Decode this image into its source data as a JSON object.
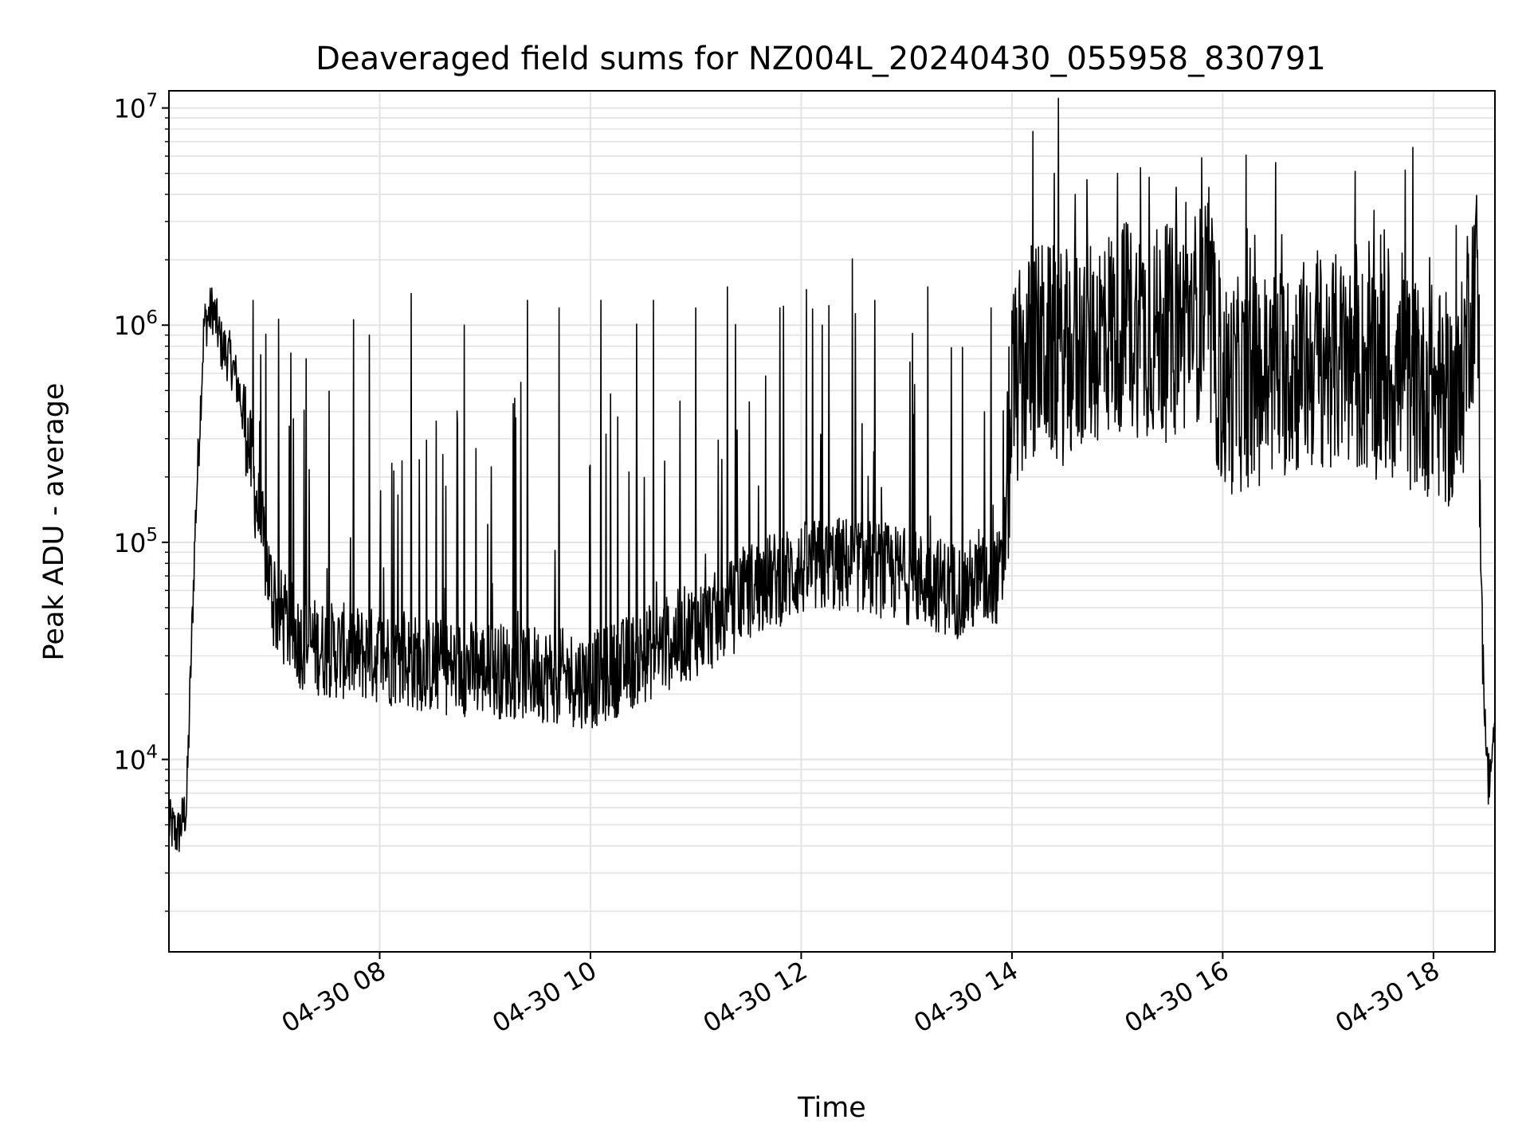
{
  "chart_data": {
    "type": "line",
    "title": "Deaveraged field sums for NZ004L_20240430_055958_830791",
    "xlabel": "Time",
    "ylabel": "Peak ADU - average",
    "yscale": "log",
    "ylim": [
      1300,
      12000000
    ],
    "xlim": [
      "2024-04-30 06:00",
      "2024-04-30 18:35"
    ],
    "x_ticks": [
      "04-30 08",
      "04-30 10",
      "04-30 12",
      "04-30 14",
      "04-30 16",
      "04-30 18"
    ],
    "y_ticks": [
      {
        "base": "10",
        "exp": "4"
      },
      {
        "base": "10",
        "exp": "5"
      },
      {
        "base": "10",
        "exp": "6"
      },
      {
        "base": "10",
        "exp": "7"
      }
    ],
    "grid": true,
    "line_color": "#000000",
    "series": [
      {
        "x": [
          "2024-04-30 06:00",
          "2024-04-30 06:05",
          "2024-04-30 06:10",
          "2024-04-30 06:15",
          "2024-04-30 06:20",
          "2024-04-30 06:25",
          "2024-04-30 06:30",
          "2024-04-30 06:35",
          "2024-04-30 06:40",
          "2024-04-30 06:45",
          "2024-04-30 06:50",
          "2024-04-30 07:00",
          "2024-04-30 07:15",
          "2024-04-30 07:30",
          "2024-04-30 08:00",
          "2024-04-30 08:30",
          "2024-04-30 09:00",
          "2024-04-30 09:30",
          "2024-04-30 10:00",
          "2024-04-30 10:30",
          "2024-04-30 11:00",
          "2024-04-30 11:15",
          "2024-04-30 11:30",
          "2024-04-30 12:00",
          "2024-04-30 12:30",
          "2024-04-30 13:00",
          "2024-04-30 13:30",
          "2024-04-30 13:55",
          "2024-04-30 14:00",
          "2024-04-30 14:15",
          "2024-04-30 14:30",
          "2024-04-30 15:00",
          "2024-04-30 15:30",
          "2024-04-30 15:50",
          "2024-04-30 16:00",
          "2024-04-30 16:30",
          "2024-04-30 17:00",
          "2024-04-30 17:30",
          "2024-04-30 18:00",
          "2024-04-30 18:15",
          "2024-04-30 18:20",
          "2024-04-30 18:25",
          "2024-04-30 18:28",
          "2024-04-30 18:31",
          "2024-04-30 18:35"
        ],
        "y": [
          5000,
          4500,
          6000,
          120000,
          1000000,
          1200000,
          800000,
          700000,
          500000,
          300000,
          150000,
          50000,
          35000,
          32000,
          30000,
          27000,
          26000,
          25000,
          23000,
          30000,
          40000,
          45000,
          60000,
          75000,
          80000,
          70000,
          60000,
          70000,
          500000,
          800000,
          700000,
          1000000,
          900000,
          1200000,
          500000,
          600000,
          700000,
          600000,
          500000,
          400000,
          1200000,
          1500000,
          30000,
          8000,
          12000
        ],
        "spikes": [
          [
            6.8,
            1300000
          ],
          [
            7.3,
            700000
          ],
          [
            7.9,
            900000
          ],
          [
            8.3,
            1400000
          ],
          [
            8.8,
            1000000
          ],
          [
            9.4,
            1300000
          ],
          [
            9.7,
            1200000
          ],
          [
            10.1,
            1300000
          ],
          [
            10.6,
            1300000
          ],
          [
            11.0,
            1200000
          ],
          [
            11.3,
            1500000
          ],
          [
            11.8,
            1200000
          ],
          [
            12.2,
            1000000
          ],
          [
            12.7,
            1300000
          ],
          [
            13.2,
            1500000
          ],
          [
            13.8,
            1200000
          ],
          [
            14.2,
            7800000
          ],
          [
            14.4,
            5000000
          ],
          [
            14.6,
            4000000
          ],
          [
            15.0,
            5000000
          ],
          [
            15.3,
            4800000
          ],
          [
            15.8,
            5900000
          ],
          [
            16.5,
            5600000
          ],
          [
            16.9,
            2200000
          ],
          [
            17.5,
            2600000
          ],
          [
            17.9,
            1200000
          ],
          [
            18.4,
            3000000
          ]
        ]
      }
    ]
  }
}
